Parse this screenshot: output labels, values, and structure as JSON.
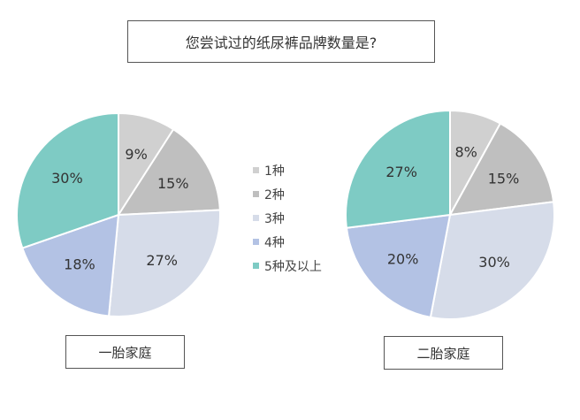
{
  "title": "您尝试过的纸尿裤品牌数量是?",
  "legend": [
    {
      "label": "1种",
      "color": "#d0d0d0"
    },
    {
      "label": "2种",
      "color": "#bfbfbf"
    },
    {
      "label": "3种",
      "color": "#d6dce9"
    },
    {
      "label": "4种",
      "color": "#b3c2e4"
    },
    {
      "label": "5种及以上",
      "color": "#7ecbc4"
    }
  ],
  "chart_data": [
    {
      "type": "pie",
      "name": "一胎家庭",
      "categories": [
        "1种",
        "2种",
        "3种",
        "4种",
        "5种及以上"
      ],
      "values": [
        9,
        15,
        27,
        18,
        30
      ],
      "value_labels": [
        "9%",
        "15%",
        "27%",
        "18%",
        "30%"
      ]
    },
    {
      "type": "pie",
      "name": "二胎家庭",
      "categories": [
        "1种",
        "2种",
        "3种",
        "4种",
        "5种及以上"
      ],
      "values": [
        8,
        15,
        30,
        20,
        27
      ],
      "value_labels": [
        "8%",
        "15%",
        "30%",
        "20%",
        "27%"
      ]
    }
  ]
}
